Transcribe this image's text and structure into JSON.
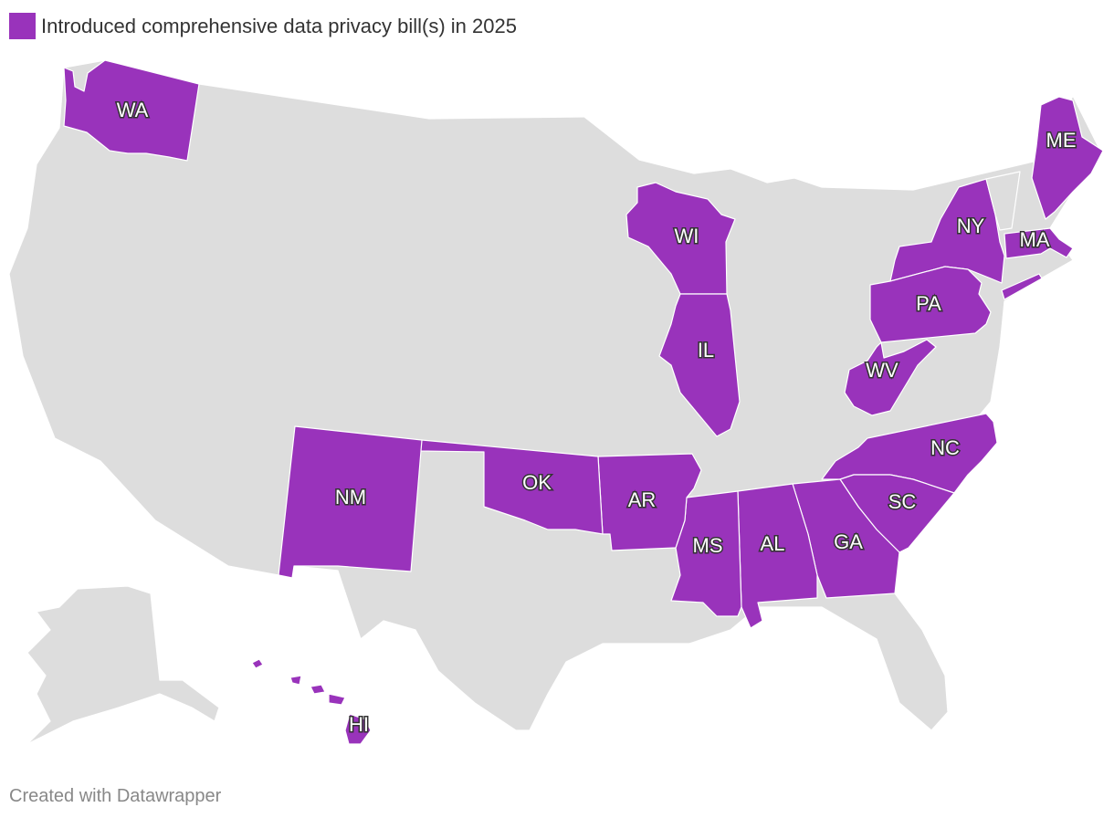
{
  "legend": {
    "label": "Introduced comprehensive data privacy bill(s) in 2025",
    "color": "#9933BB"
  },
  "colors": {
    "highlight": "#9933BB",
    "base": "#DDDDDD",
    "border": "#FFFFFF"
  },
  "highlighted_states": [
    "WA",
    "WI",
    "IL",
    "NY",
    "ME",
    "MA",
    "PA",
    "WV",
    "NC",
    "SC",
    "GA",
    "AL",
    "MS",
    "AR",
    "OK",
    "NM",
    "HI"
  ],
  "labels": {
    "WA": "WA",
    "WI": "WI",
    "IL": "IL",
    "NY": "NY",
    "ME": "ME",
    "MA": "MA",
    "PA": "PA",
    "WV": "WV",
    "NC": "NC",
    "SC": "SC",
    "GA": "GA",
    "AL": "AL",
    "MS": "MS",
    "AR": "AR",
    "OK": "OK",
    "NM": "NM",
    "HI": "HI"
  },
  "footer": "Created with Datawrapper"
}
